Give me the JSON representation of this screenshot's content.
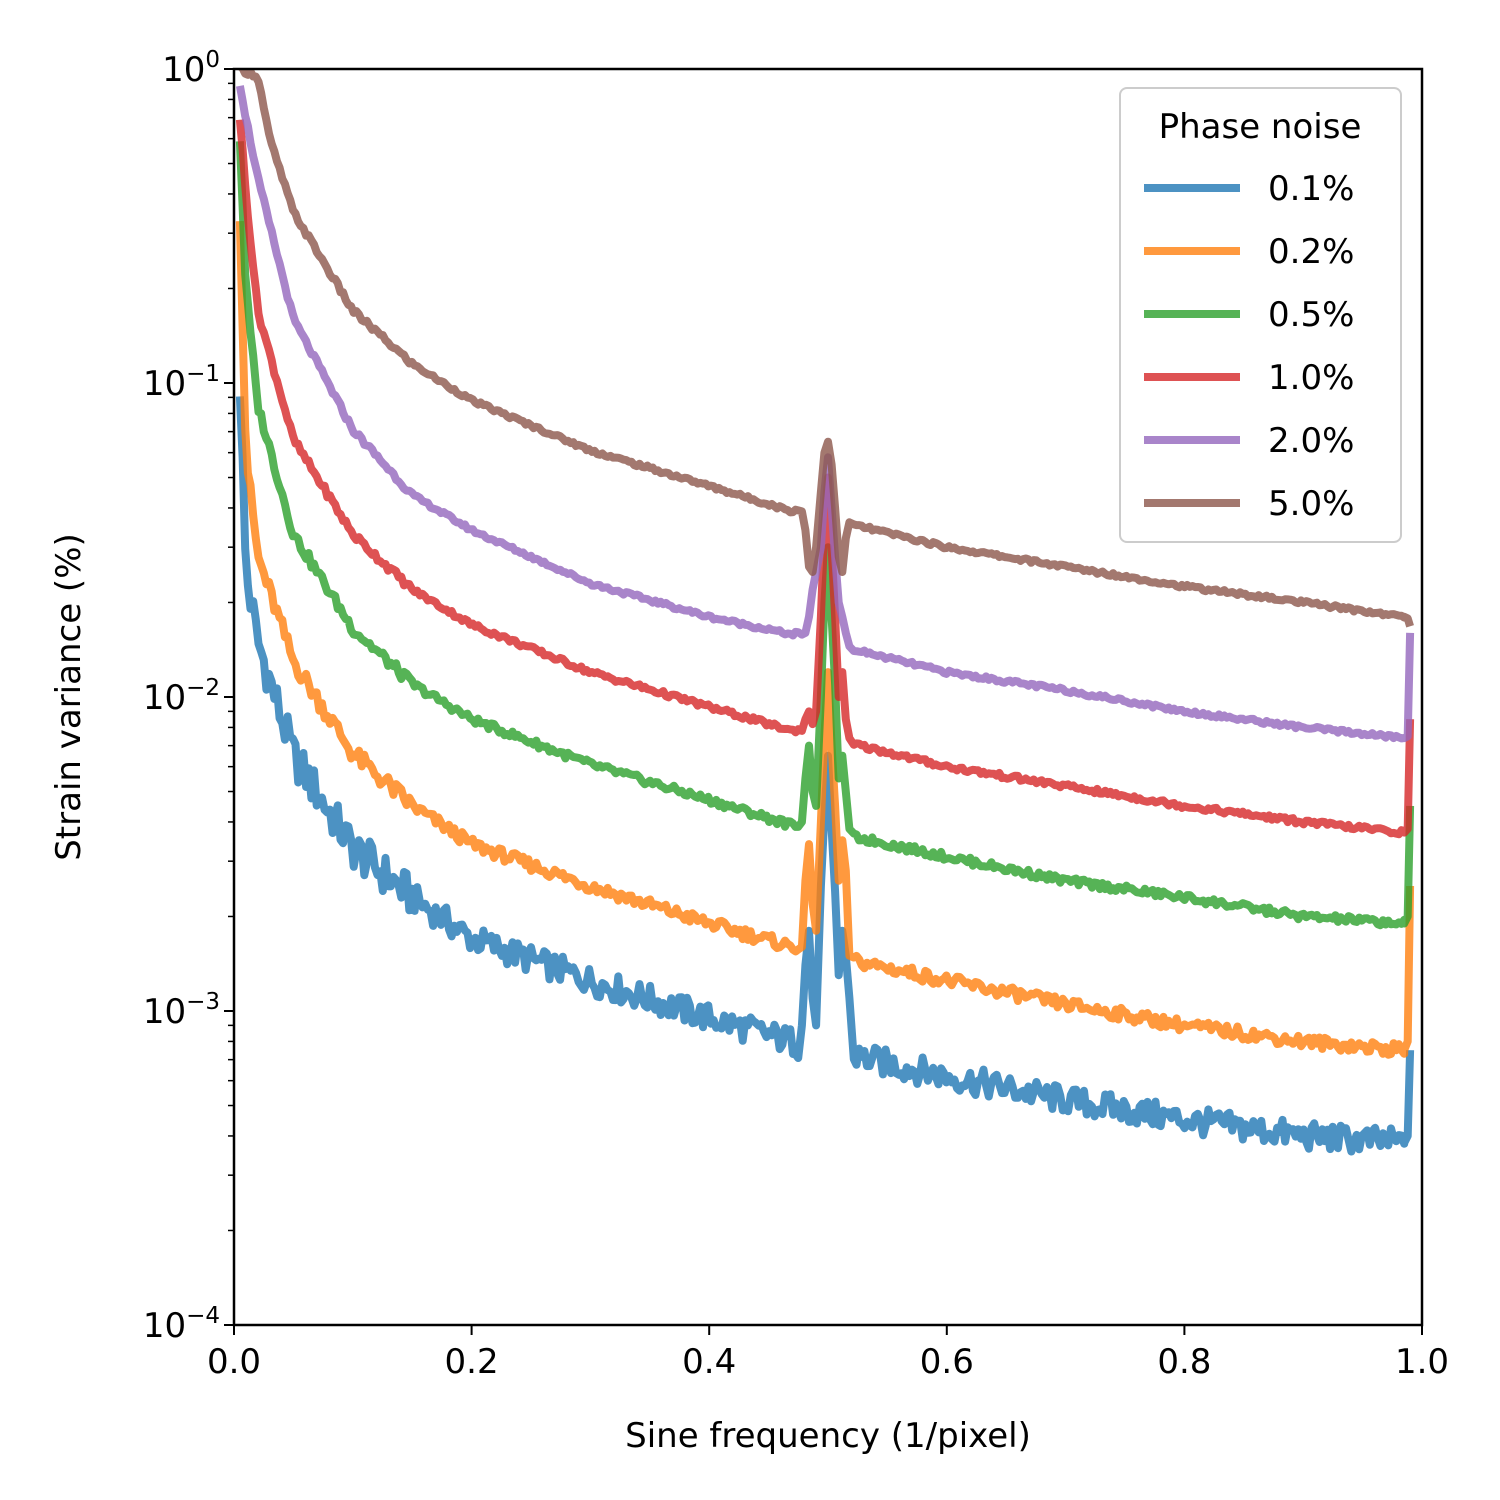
{
  "chart_data": {
    "type": "line",
    "title": "",
    "xlabel": "Sine frequency (1/pixel)",
    "ylabel": "Strain variance (%)",
    "xscale": "linear",
    "yscale": "log",
    "xlim": [
      0.0,
      1.0
    ],
    "ylim": [
      0.0001,
      1
    ],
    "grid": false,
    "x_ticks": [
      {
        "value": 0.0,
        "label": "0.0"
      },
      {
        "value": 0.2,
        "label": "0.2"
      },
      {
        "value": 0.4,
        "label": "0.4"
      },
      {
        "value": 0.6,
        "label": "0.6"
      },
      {
        "value": 0.8,
        "label": "0.8"
      },
      {
        "value": 1.0,
        "label": "1.0"
      }
    ],
    "y_ticks": [
      {
        "value": 1,
        "base": "10",
        "exp": "0"
      },
      {
        "value": 0.1,
        "base": "10",
        "exp": "−1"
      },
      {
        "value": 0.01,
        "base": "10",
        "exp": "−2"
      },
      {
        "value": 0.001,
        "base": "10",
        "exp": "−3"
      },
      {
        "value": 0.0001,
        "base": "10",
        "exp": "−4"
      }
    ],
    "legend": {
      "title": "Phase noise",
      "location": "top-right"
    },
    "series": [
      {
        "name": "0.1%",
        "color": "#1f77b4",
        "noise": 0.045,
        "points": [
          [
            0.005,
            0.1
          ],
          [
            0.01,
            0.025
          ],
          [
            0.02,
            0.015
          ],
          [
            0.05,
            0.0065
          ],
          [
            0.1,
            0.0033
          ],
          [
            0.15,
            0.0023
          ],
          [
            0.2,
            0.0017
          ],
          [
            0.3,
            0.00125
          ],
          [
            0.4,
            0.00095
          ],
          [
            0.47,
            0.0008
          ],
          [
            0.48,
            0.00075
          ],
          [
            0.5,
            0.0009
          ],
          [
            0.52,
            0.00072
          ],
          [
            0.6,
            0.00062
          ],
          [
            0.7,
            0.00052
          ],
          [
            0.8,
            0.00045
          ],
          [
            0.9,
            0.0004
          ],
          [
            0.985,
            0.00038
          ]
        ],
        "peak": [
          [
            0.478,
            0.0009
          ],
          [
            0.481,
            0.0014
          ],
          [
            0.484,
            0.0018
          ],
          [
            0.487,
            0.0011
          ],
          [
            0.49,
            0.0009
          ],
          [
            0.494,
            0.0025
          ],
          [
            0.497,
            0.0042
          ],
          [
            0.5,
            0.0065
          ],
          [
            0.503,
            0.0038
          ],
          [
            0.506,
            0.0024
          ],
          [
            0.509,
            0.0013
          ],
          [
            0.512,
            0.0018
          ],
          [
            0.515,
            0.0015
          ],
          [
            0.518,
            0.0011
          ]
        ],
        "end": [
          [
            0.985,
            0.00038
          ],
          [
            0.988,
            0.0004
          ],
          [
            0.99,
            0.00075
          ]
        ]
      },
      {
        "name": "0.2%",
        "color": "#ff7f0e",
        "noise": 0.02,
        "points": [
          [
            0.005,
            0.35
          ],
          [
            0.01,
            0.06
          ],
          [
            0.02,
            0.028
          ],
          [
            0.05,
            0.013
          ],
          [
            0.1,
            0.0066
          ],
          [
            0.15,
            0.0045
          ],
          [
            0.2,
            0.0034
          ],
          [
            0.3,
            0.0025
          ],
          [
            0.4,
            0.0019
          ],
          [
            0.47,
            0.0016
          ],
          [
            0.5,
            0.0017
          ],
          [
            0.52,
            0.00145
          ],
          [
            0.6,
            0.00125
          ],
          [
            0.7,
            0.00105
          ],
          [
            0.8,
            0.0009
          ],
          [
            0.9,
            0.0008
          ],
          [
            0.985,
            0.00075
          ]
        ],
        "peak": [
          [
            0.478,
            0.0016
          ],
          [
            0.481,
            0.0026
          ],
          [
            0.484,
            0.0034
          ],
          [
            0.487,
            0.0022
          ],
          [
            0.49,
            0.0018
          ],
          [
            0.494,
            0.004
          ],
          [
            0.497,
            0.0075
          ],
          [
            0.5,
            0.012
          ],
          [
            0.503,
            0.007
          ],
          [
            0.506,
            0.0045
          ],
          [
            0.509,
            0.0026
          ],
          [
            0.512,
            0.0035
          ],
          [
            0.515,
            0.0028
          ],
          [
            0.518,
            0.0015
          ]
        ],
        "end": [
          [
            0.985,
            0.00075
          ],
          [
            0.988,
            0.0008
          ],
          [
            0.99,
            0.0025
          ]
        ]
      },
      {
        "name": "0.5%",
        "color": "#2ca02c",
        "noise": 0.012,
        "points": [
          [
            0.005,
            0.6
          ],
          [
            0.01,
            0.2
          ],
          [
            0.02,
            0.085
          ],
          [
            0.05,
            0.033
          ],
          [
            0.1,
            0.0165
          ],
          [
            0.15,
            0.011
          ],
          [
            0.2,
            0.0085
          ],
          [
            0.3,
            0.0061
          ],
          [
            0.4,
            0.0047
          ],
          [
            0.47,
            0.0039
          ],
          [
            0.5,
            0.0042
          ],
          [
            0.52,
            0.0036
          ],
          [
            0.6,
            0.0031
          ],
          [
            0.7,
            0.0026
          ],
          [
            0.8,
            0.0023
          ],
          [
            0.9,
            0.002
          ],
          [
            0.985,
            0.0019
          ]
        ],
        "peak": [
          [
            0.478,
            0.004
          ],
          [
            0.481,
            0.0055
          ],
          [
            0.484,
            0.007
          ],
          [
            0.487,
            0.005
          ],
          [
            0.49,
            0.0045
          ],
          [
            0.494,
            0.01
          ],
          [
            0.497,
            0.02
          ],
          [
            0.5,
            0.03
          ],
          [
            0.503,
            0.018
          ],
          [
            0.506,
            0.011
          ],
          [
            0.509,
            0.0055
          ],
          [
            0.512,
            0.0065
          ],
          [
            0.515,
            0.005
          ],
          [
            0.518,
            0.0038
          ]
        ],
        "end": [
          [
            0.985,
            0.0019
          ],
          [
            0.988,
            0.002
          ],
          [
            0.99,
            0.0045
          ]
        ]
      },
      {
        "name": "1.0%",
        "color": "#d62728",
        "noise": 0.008,
        "points": [
          [
            0.005,
            0.7
          ],
          [
            0.01,
            0.4
          ],
          [
            0.02,
            0.17
          ],
          [
            0.05,
            0.066
          ],
          [
            0.1,
            0.033
          ],
          [
            0.15,
            0.022
          ],
          [
            0.2,
            0.017
          ],
          [
            0.3,
            0.012
          ],
          [
            0.4,
            0.0093
          ],
          [
            0.47,
            0.0078
          ],
          [
            0.5,
            0.0084
          ],
          [
            0.52,
            0.0071
          ],
          [
            0.6,
            0.006
          ],
          [
            0.7,
            0.0052
          ],
          [
            0.8,
            0.0045
          ],
          [
            0.9,
            0.004
          ],
          [
            0.985,
            0.0037
          ]
        ],
        "peak": [
          [
            0.478,
            0.0078
          ],
          [
            0.481,
            0.0085
          ],
          [
            0.484,
            0.009
          ],
          [
            0.487,
            0.0082
          ],
          [
            0.49,
            0.009
          ],
          [
            0.494,
            0.018
          ],
          [
            0.497,
            0.035
          ],
          [
            0.5,
            0.05
          ],
          [
            0.503,
            0.03
          ],
          [
            0.506,
            0.018
          ],
          [
            0.509,
            0.01
          ],
          [
            0.512,
            0.012
          ],
          [
            0.515,
            0.0085
          ],
          [
            0.518,
            0.0074
          ]
        ],
        "end": [
          [
            0.985,
            0.0037
          ],
          [
            0.988,
            0.0038
          ],
          [
            0.99,
            0.0085
          ]
        ]
      },
      {
        "name": "2.0%",
        "color": "#9467bd",
        "noise": 0.006,
        "points": [
          [
            0.005,
            0.9
          ],
          [
            0.01,
            0.7
          ],
          [
            0.02,
            0.45
          ],
          [
            0.05,
            0.16
          ],
          [
            0.1,
            0.071
          ],
          [
            0.15,
            0.044
          ],
          [
            0.2,
            0.034
          ],
          [
            0.3,
            0.023
          ],
          [
            0.4,
            0.018
          ],
          [
            0.47,
            0.0158
          ],
          [
            0.5,
            0.017
          ],
          [
            0.52,
            0.0142
          ],
          [
            0.6,
            0.012
          ],
          [
            0.7,
            0.0105
          ],
          [
            0.8,
            0.009
          ],
          [
            0.9,
            0.008
          ],
          [
            0.985,
            0.0074
          ]
        ],
        "peak": [
          [
            0.478,
            0.0158
          ],
          [
            0.481,
            0.016
          ],
          [
            0.484,
            0.018
          ],
          [
            0.487,
            0.022
          ],
          [
            0.49,
            0.025
          ],
          [
            0.494,
            0.03
          ],
          [
            0.497,
            0.045
          ],
          [
            0.5,
            0.058
          ],
          [
            0.503,
            0.04
          ],
          [
            0.506,
            0.028
          ],
          [
            0.509,
            0.02
          ],
          [
            0.512,
            0.018
          ],
          [
            0.515,
            0.016
          ],
          [
            0.518,
            0.0145
          ]
        ],
        "end": [
          [
            0.985,
            0.0074
          ],
          [
            0.988,
            0.0075
          ],
          [
            0.99,
            0.016
          ]
        ]
      },
      {
        "name": "5.0%",
        "color": "#8c564b",
        "noise": 0.006,
        "points": [
          [
            0.005,
            1.0
          ],
          [
            0.02,
            0.95
          ],
          [
            0.03,
            0.6
          ],
          [
            0.05,
            0.35
          ],
          [
            0.1,
            0.17
          ],
          [
            0.15,
            0.115
          ],
          [
            0.2,
            0.088
          ],
          [
            0.3,
            0.061
          ],
          [
            0.4,
            0.047
          ],
          [
            0.47,
            0.039
          ],
          [
            0.5,
            0.042
          ],
          [
            0.52,
            0.0355
          ],
          [
            0.6,
            0.03
          ],
          [
            0.7,
            0.026
          ],
          [
            0.8,
            0.0225
          ],
          [
            0.9,
            0.02
          ],
          [
            0.985,
            0.018
          ]
        ],
        "peak": [
          [
            0.478,
            0.039
          ],
          [
            0.481,
            0.034
          ],
          [
            0.484,
            0.026
          ],
          [
            0.487,
            0.025
          ],
          [
            0.49,
            0.03
          ],
          [
            0.494,
            0.045
          ],
          [
            0.497,
            0.06
          ],
          [
            0.5,
            0.065
          ],
          [
            0.503,
            0.055
          ],
          [
            0.506,
            0.04
          ],
          [
            0.509,
            0.028
          ],
          [
            0.512,
            0.025
          ],
          [
            0.515,
            0.032
          ],
          [
            0.518,
            0.036
          ]
        ],
        "end": [
          [
            0.985,
            0.018
          ],
          [
            0.988,
            0.0178
          ],
          [
            0.99,
            0.0168
          ]
        ]
      }
    ]
  }
}
